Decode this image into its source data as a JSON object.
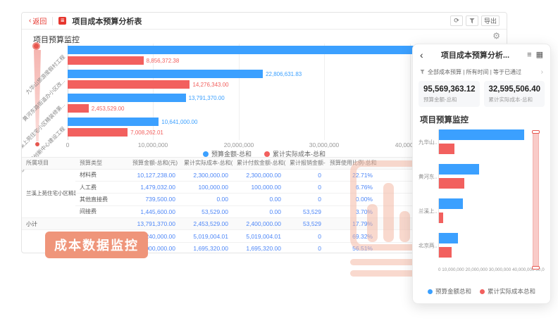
{
  "colors": {
    "accent_red": "#e6362e",
    "bar_blue": "#3ba0ff",
    "bar_red": "#f2605e",
    "table_value_blue": "#4e87f7",
    "badge_bg": "#ef957a",
    "watermark_salmon": "#f4b49e"
  },
  "icons": {
    "back_chevron": "‹",
    "doc": "≣",
    "refresh": "⟳",
    "gear": "⚙",
    "panel_back": "‹",
    "list_view": "≡",
    "grid_view": "▦",
    "chevron_right": "›"
  },
  "window": {
    "titlebar": {
      "back_label": "返回",
      "title": "项目成本预算分析表",
      "export_label": "导出"
    },
    "section_title": "项目预算监控"
  },
  "main_chart": {
    "chart_data": {
      "type": "bar",
      "orientation": "horizontal",
      "title": "项目预算监控",
      "categories": [
        "九华山旅游度假村工程",
        "黄河东路街道办小区改...",
        "兰溪上苑住宅小区精装修第...",
        "北京两湖创新中心建设工程"
      ],
      "series": [
        {
          "name": "预算金额-总和",
          "color": "#3ba0ff",
          "values": [
            48330361,
            22806631.83,
            13791370,
            10641000
          ]
        },
        {
          "name": "累计实际成本-总和",
          "color": "#f2605e",
          "values": [
            8856372.38,
            14276343,
            2453529,
            7008262.01
          ]
        }
      ],
      "x_ticks": [
        "0",
        "10,000,000",
        "20,000,000",
        "30,000,000",
        "40,000,000"
      ],
      "xlim": [
        0,
        51000000
      ],
      "grid": true,
      "legend_position": "bottom"
    },
    "bar_labels": {
      "budget": [
        "",
        "22,806,631.83",
        "13,791,370.00",
        "10,641,000.00"
      ],
      "actual": [
        "8,856,372.38",
        "14,276,343.00",
        "2,453,529.00",
        "7,008,262.01"
      ]
    }
  },
  "table": {
    "headers": [
      "所属项目",
      "预算类型",
      "预算金额-总和(元)",
      "累计实际成本-总和(元)",
      "累计付款金额-总和(元)",
      "累计报销金额-总和(元)",
      "预算使用比例-总和(%)"
    ],
    "project1_name": "兰溪上苑住宅小区精装修第...",
    "subtotal_label": "小计",
    "rows": [
      {
        "type": "材料费",
        "budget": "10,127,238.00",
        "actual": "2,300,000.00",
        "payment": "2,300,000.00",
        "reimburse": "0",
        "ratio": "22.71%"
      },
      {
        "type": "人工费",
        "budget": "1,479,032.00",
        "actual": "100,000.00",
        "payment": "100,000.00",
        "reimburse": "0",
        "ratio": "6.76%"
      },
      {
        "type": "其他直接费",
        "budget": "739,500.00",
        "actual": "0.00",
        "payment": "0.00",
        "reimburse": "0",
        "ratio": "0.00%"
      },
      {
        "type": "间接费",
        "budget": "1,445,600.00",
        "actual": "53,529.00",
        "payment": "0.00",
        "reimburse": "53,529",
        "ratio": "3.70%"
      },
      {
        "type": "",
        "budget": "13,791,370.00",
        "actual": "2,453,529.00",
        "payment": "2,400,000.00",
        "reimburse": "53,529",
        "ratio": "17.79%"
      },
      {
        "type": "材料费",
        "budget": "7,240,000.00",
        "actual": "5,019,004.01",
        "payment": "5,019,004.01",
        "reimburse": "0",
        "ratio": "69.32%"
      },
      {
        "type": "",
        "budget": "3,000,000.00",
        "actual": "1,695,320.00",
        "payment": "1,695,320.00",
        "reimburse": "0",
        "ratio": "56.51%"
      }
    ]
  },
  "badge_label": "成本数据监控",
  "panel": {
    "title": "项目成本预算分析...",
    "filter_text": "全部成本预算 | 所有时间 | 等于已通过",
    "stats": [
      {
        "value": "95,569,363.12",
        "label": "预算金额-总和"
      },
      {
        "value": "32,595,506.40",
        "label": "累计实际成本-总和"
      }
    ],
    "section_title": "项目预算监控",
    "chart_data": {
      "type": "bar",
      "orientation": "horizontal",
      "categories": [
        "九华山..",
        "黄河东..",
        "兰溪上..",
        "北京两.."
      ],
      "series": [
        {
          "name": "预算金额总和",
          "color": "#3ba0ff",
          "values": [
            48330361,
            22806631.83,
            13791370,
            10641000
          ]
        },
        {
          "name": "累计实际成本总和",
          "color": "#f2605e",
          "values": [
            8856372.38,
            14276343,
            2453529,
            7008262.01
          ]
        }
      ],
      "x_ticks": [
        "0",
        "10,000,000",
        "20,000,000",
        "30,000,000",
        "40,000,000",
        "50,000,000"
      ],
      "x_axis_display": "0    10,000,000 20,000,000 30,000,000 40,000,000 50,000,000",
      "xlim": [
        0,
        52000000
      ],
      "legend_position": "bottom"
    }
  }
}
